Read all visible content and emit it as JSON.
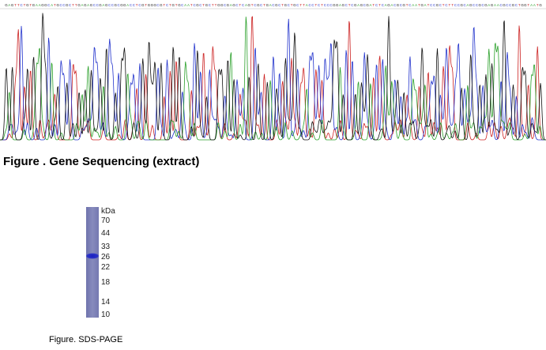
{
  "sequencing_figure": {
    "caption": "Figure . Gene Sequencing (extract)",
    "base_colors": {
      "A": "#2aa02a",
      "C": "#2233cc",
      "G": "#111111",
      "T": "#cc2222"
    },
    "sequence": "GAGTTCTGTGAAGGCATGCCGCTTGAGAGCCGAGCCGCGGACCTCGTGGGCGTCTGTGCAATCGCTGCTTGGCGAGCTCAGTCGCTGACGCTGCTGCTTACCTCTCCCGGAGCTCGAGCGATCTCAGACGCGTCAATGATCCGCTCTTCCGCAGCCGCGAGAACGCCGCTGGTAATG"
  },
  "sds_page_figure": {
    "caption": "Figure. SDS-PAGE",
    "unit_label": "kDa",
    "markers": [
      "70",
      "44",
      "33",
      "26",
      "22",
      "18",
      "14",
      "10"
    ]
  }
}
